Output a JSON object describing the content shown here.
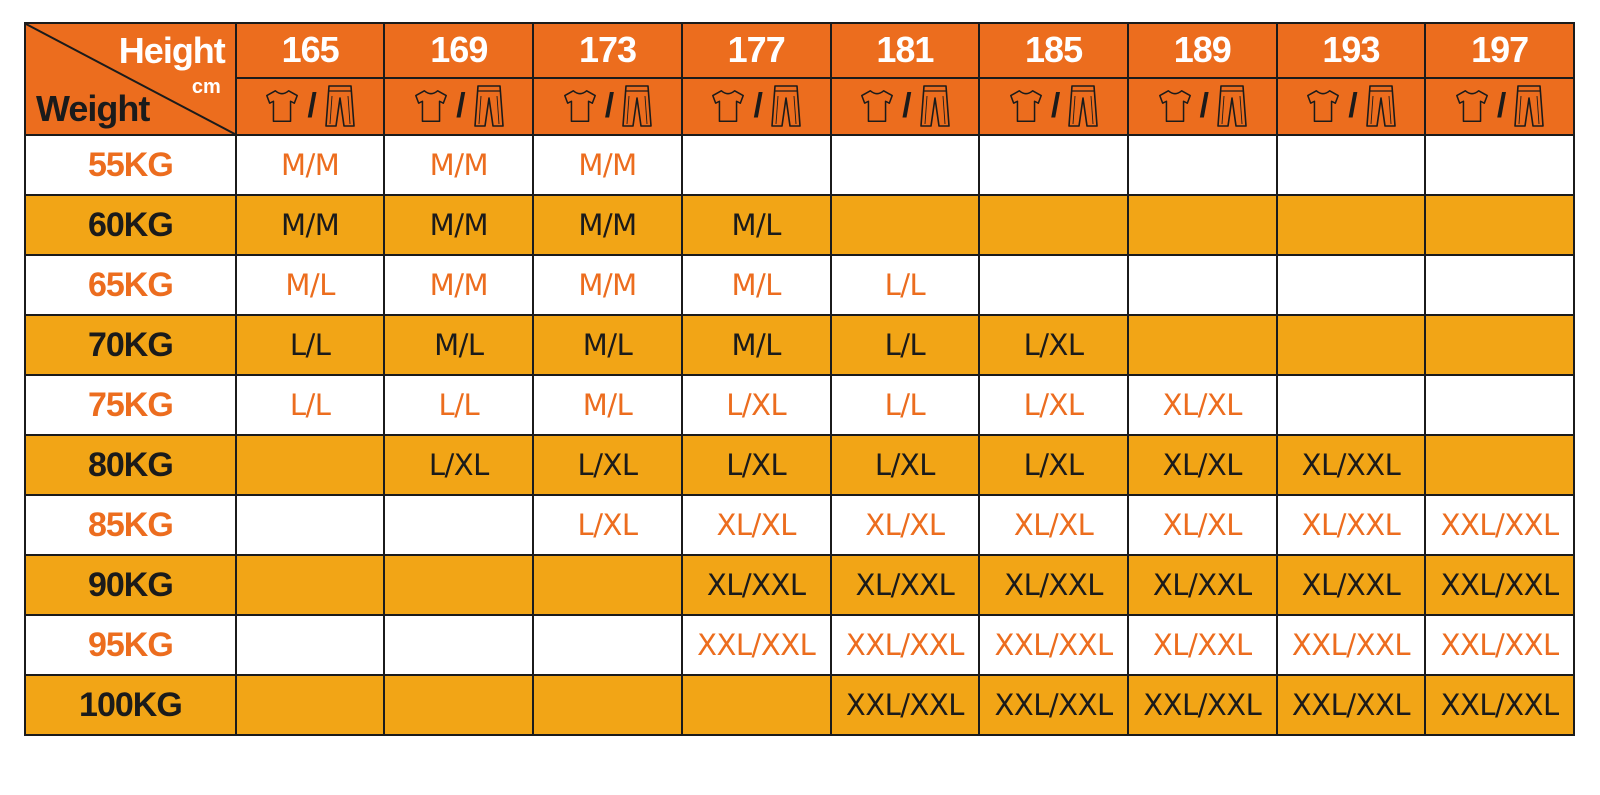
{
  "header": {
    "height_label": "Height",
    "unit_label": "cm",
    "weight_label": "Weight",
    "heights": [
      "165",
      "169",
      "173",
      "177",
      "181",
      "185",
      "189",
      "193",
      "197"
    ],
    "icon_left": "tshirt-icon",
    "icon_separator": "/",
    "icon_right": "pants-icon"
  },
  "colors": {
    "header_orange": "#ec6d1e",
    "row_orange": "#f2a516",
    "row_white": "#ffffff",
    "text_orange": "#ec6d1e",
    "text_dark": "#1b1b1b",
    "text_white": "#ffffff"
  },
  "rows": [
    {
      "weight": "55KG",
      "sizes": [
        "M/M",
        "M/M",
        "M/M",
        "",
        "",
        "",
        "",
        "",
        ""
      ]
    },
    {
      "weight": "60KG",
      "sizes": [
        "M/M",
        "M/M",
        "M/M",
        "M/L",
        "",
        "",
        "",
        "",
        ""
      ]
    },
    {
      "weight": "65KG",
      "sizes": [
        "M/L",
        "M/M",
        "M/M",
        "M/L",
        "L/L",
        "",
        "",
        "",
        ""
      ]
    },
    {
      "weight": "70KG",
      "sizes": [
        "L/L",
        "M/L",
        "M/L",
        "M/L",
        "L/L",
        "L/XL",
        "",
        "",
        ""
      ]
    },
    {
      "weight": "75KG",
      "sizes": [
        "L/L",
        "L/L",
        "M/L",
        "L/XL",
        "L/L",
        "L/XL",
        "XL/XL",
        "",
        ""
      ]
    },
    {
      "weight": "80KG",
      "sizes": [
        "",
        "L/XL",
        "L/XL",
        "L/XL",
        "L/XL",
        "L/XL",
        "XL/XL",
        "XL/XXL",
        ""
      ]
    },
    {
      "weight": "85KG",
      "sizes": [
        "",
        "",
        "L/XL",
        "XL/XL",
        "XL/XL",
        "XL/XL",
        "XL/XL",
        "XL/XXL",
        "XXL/XXL"
      ]
    },
    {
      "weight": "90KG",
      "sizes": [
        "",
        "",
        "",
        "XL/XXL",
        "XL/XXL",
        "XL/XXL",
        "XL/XXL",
        "XL/XXL",
        "XXL/XXL"
      ]
    },
    {
      "weight": "95KG",
      "sizes": [
        "",
        "",
        "",
        "XXL/XXL",
        "XXL/XXL",
        "XXL/XXL",
        "XL/XXL",
        "XXL/XXL",
        "XXL/XXL"
      ]
    },
    {
      "weight": "100KG",
      "sizes": [
        "",
        "",
        "",
        "",
        "XXL/XXL",
        "XXL/XXL",
        "XXL/XXL",
        "XXL/XXL",
        "XXL/XXL"
      ]
    }
  ]
}
